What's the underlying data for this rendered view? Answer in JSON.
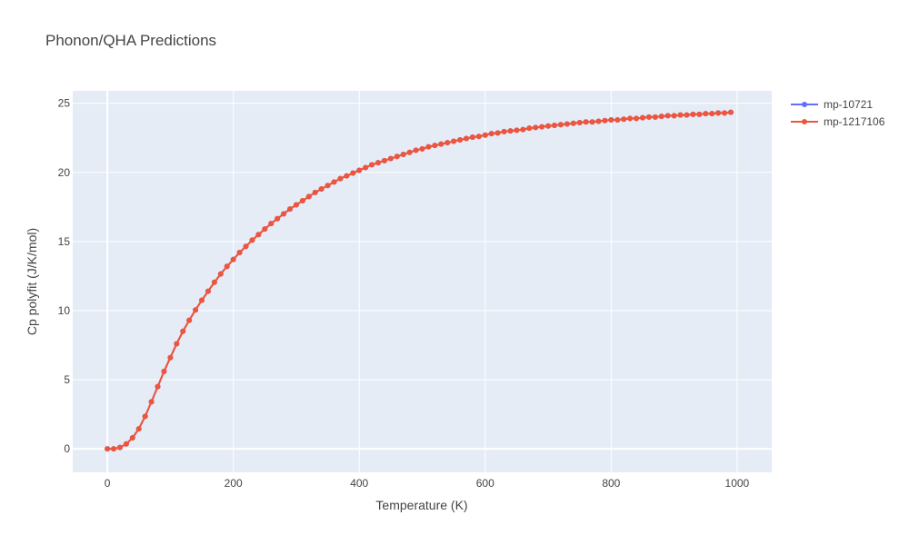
{
  "chart_data": {
    "type": "line",
    "title": "Phonon/QHA Predictions",
    "xlabel": "Temperature (K)",
    "ylabel": "Cp polyfit (J/K/mol)",
    "xlim": [
      -55,
      1055
    ],
    "ylim": [
      -1.7,
      25.9
    ],
    "xticks": [
      0,
      200,
      400,
      600,
      800,
      1000
    ],
    "yticks": [
      0,
      5,
      10,
      15,
      20,
      25
    ],
    "grid": true,
    "legend_position": "top-right",
    "series": [
      {
        "name": "mp-10721",
        "color": "#636efa",
        "marker": "circle",
        "x": [
          0,
          10,
          20,
          30,
          40,
          50,
          60,
          70,
          80,
          90,
          100,
          110,
          120,
          130,
          140,
          150,
          160,
          170,
          180,
          190,
          200,
          210,
          220,
          230,
          240,
          250,
          260,
          270,
          280,
          290,
          300,
          310,
          320,
          330,
          340,
          350,
          360,
          370,
          380,
          390,
          400,
          410,
          420,
          430,
          440,
          450,
          460,
          470,
          480,
          490,
          500,
          510,
          520,
          530,
          540,
          550,
          560,
          570,
          580,
          590,
          600,
          610,
          620,
          630,
          640,
          650,
          660,
          670,
          680,
          690,
          700,
          710,
          720,
          730,
          740,
          750,
          760,
          770,
          780,
          790,
          800,
          810,
          820,
          830,
          840,
          850,
          860,
          870,
          880,
          890,
          900,
          910,
          920,
          930,
          940,
          950,
          960,
          970,
          980,
          990
        ],
        "y": [
          0,
          0,
          0.1,
          0.35,
          0.8,
          1.45,
          2.35,
          3.4,
          4.5,
          5.6,
          6.6,
          7.6,
          8.5,
          9.3,
          10.05,
          10.75,
          11.4,
          12.05,
          12.65,
          13.2,
          13.7,
          14.2,
          14.65,
          15.1,
          15.5,
          15.9,
          16.3,
          16.65,
          17.0,
          17.35,
          17.65,
          17.95,
          18.25,
          18.55,
          18.8,
          19.05,
          19.3,
          19.55,
          19.75,
          19.95,
          20.15,
          20.35,
          20.55,
          20.7,
          20.85,
          21.0,
          21.15,
          21.3,
          21.45,
          21.6,
          21.7,
          21.85,
          21.95,
          22.05,
          22.15,
          22.25,
          22.35,
          22.45,
          22.55,
          22.6,
          22.7,
          22.8,
          22.85,
          22.95,
          23.0,
          23.05,
          23.1,
          23.2,
          23.25,
          23.3,
          23.35,
          23.4,
          23.45,
          23.5,
          23.55,
          23.6,
          23.65,
          23.65,
          23.7,
          23.75,
          23.8,
          23.8,
          23.85,
          23.9,
          23.9,
          23.95,
          24.0,
          24.0,
          24.05,
          24.1,
          24.1,
          24.15,
          24.15,
          24.2,
          24.2,
          24.25,
          24.25,
          24.3,
          24.3,
          24.35
        ]
      },
      {
        "name": "mp-1217106",
        "color": "#ef553b",
        "marker": "circle",
        "x": [
          0,
          10,
          20,
          30,
          40,
          50,
          60,
          70,
          80,
          90,
          100,
          110,
          120,
          130,
          140,
          150,
          160,
          170,
          180,
          190,
          200,
          210,
          220,
          230,
          240,
          250,
          260,
          270,
          280,
          290,
          300,
          310,
          320,
          330,
          340,
          350,
          360,
          370,
          380,
          390,
          400,
          410,
          420,
          430,
          440,
          450,
          460,
          470,
          480,
          490,
          500,
          510,
          520,
          530,
          540,
          550,
          560,
          570,
          580,
          590,
          600,
          610,
          620,
          630,
          640,
          650,
          660,
          670,
          680,
          690,
          700,
          710,
          720,
          730,
          740,
          750,
          760,
          770,
          780,
          790,
          800,
          810,
          820,
          830,
          840,
          850,
          860,
          870,
          880,
          890,
          900,
          910,
          920,
          930,
          940,
          950,
          960,
          970,
          980,
          990
        ],
        "y": [
          0,
          0,
          0.1,
          0.35,
          0.8,
          1.45,
          2.35,
          3.4,
          4.5,
          5.6,
          6.6,
          7.6,
          8.5,
          9.3,
          10.05,
          10.75,
          11.4,
          12.05,
          12.65,
          13.2,
          13.7,
          14.2,
          14.65,
          15.1,
          15.5,
          15.9,
          16.3,
          16.65,
          17.0,
          17.35,
          17.65,
          17.95,
          18.25,
          18.55,
          18.8,
          19.05,
          19.3,
          19.55,
          19.75,
          19.95,
          20.15,
          20.35,
          20.55,
          20.7,
          20.85,
          21.0,
          21.15,
          21.3,
          21.45,
          21.6,
          21.7,
          21.85,
          21.95,
          22.05,
          22.15,
          22.25,
          22.35,
          22.45,
          22.55,
          22.6,
          22.7,
          22.8,
          22.85,
          22.95,
          23.0,
          23.05,
          23.1,
          23.2,
          23.25,
          23.3,
          23.35,
          23.4,
          23.45,
          23.5,
          23.55,
          23.6,
          23.65,
          23.65,
          23.7,
          23.75,
          23.8,
          23.8,
          23.85,
          23.9,
          23.9,
          23.95,
          24.0,
          24.0,
          24.05,
          24.1,
          24.1,
          24.15,
          24.15,
          24.2,
          24.2,
          24.25,
          24.25,
          24.3,
          24.3,
          24.35
        ]
      }
    ]
  }
}
